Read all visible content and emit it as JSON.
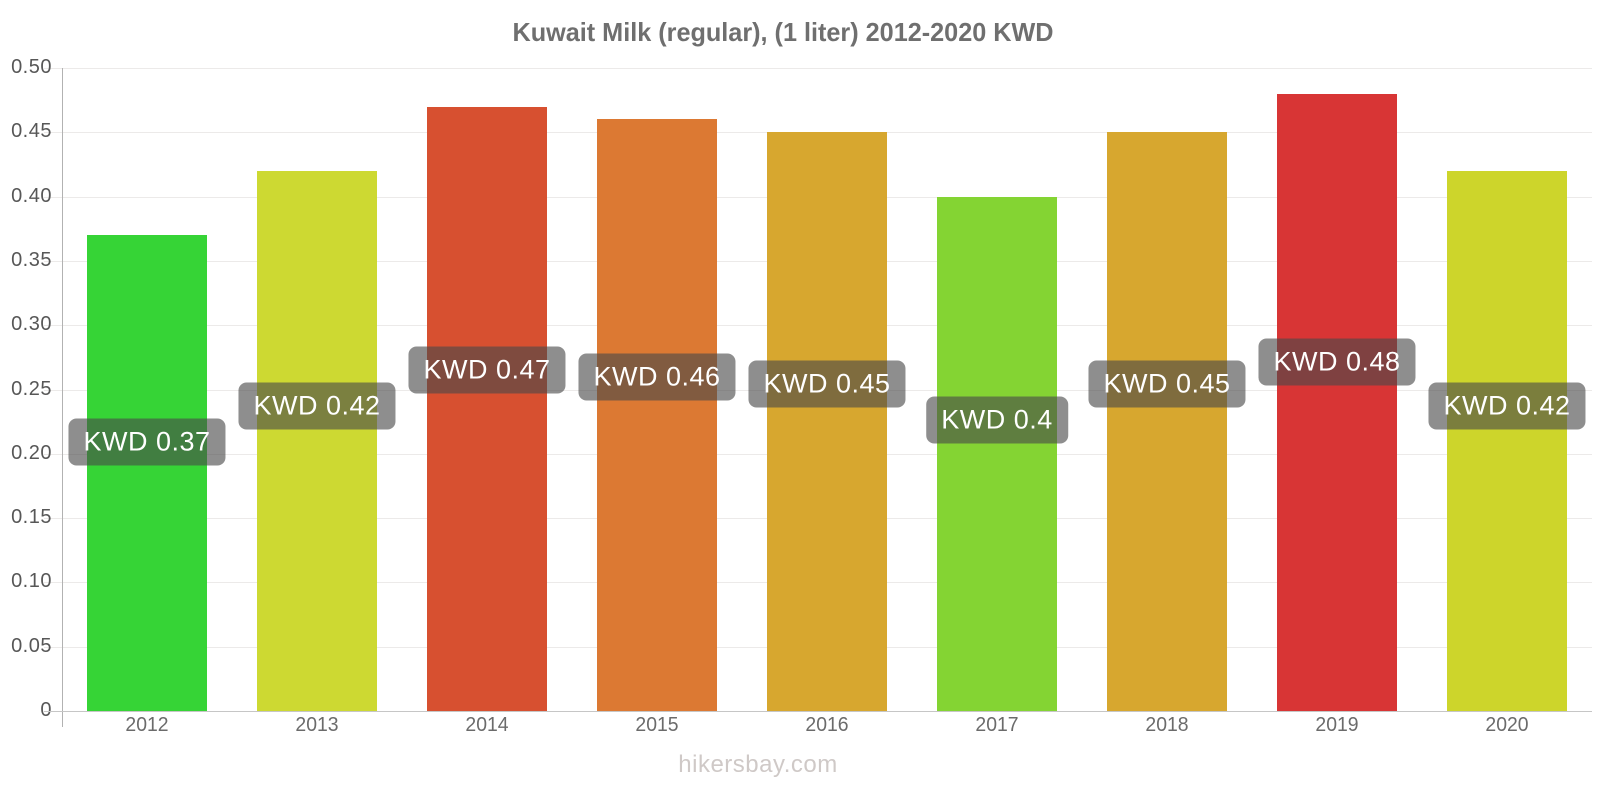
{
  "chart_data": {
    "type": "bar",
    "title": "Kuwait Milk (regular), (1 liter) 2012-2020 KWD",
    "categories": [
      "2012",
      "2013",
      "2014",
      "2015",
      "2016",
      "2017",
      "2018",
      "2019",
      "2020"
    ],
    "values": [
      0.37,
      0.42,
      0.47,
      0.46,
      0.45,
      0.4,
      0.45,
      0.48,
      0.42
    ],
    "bar_labels": [
      "KWD 0.37",
      "KWD 0.42",
      "KWD 0.47",
      "KWD 0.46",
      "KWD 0.45",
      "KWD 0.4",
      "KWD 0.45",
      "KWD 0.48",
      "KWD 0.42"
    ],
    "bar_colors": [
      "#36d436",
      "#cdd932",
      "#d75030",
      "#dc7933",
      "#d7a72f",
      "#84d433",
      "#d7a72f",
      "#d83535",
      "#cdd52b"
    ],
    "xlabel": "",
    "ylabel": "",
    "ylim": [
      0,
      0.5
    ],
    "y_ticks": [
      "0",
      "0.05",
      "0.10",
      "0.15",
      "0.20",
      "0.25",
      "0.30",
      "0.35",
      "0.40",
      "0.45",
      "0.50"
    ],
    "grid": true,
    "legend_position": "none",
    "bar_label_box_color": "rgba(72,72,72,0.62)",
    "bar_label_text_color": "#ffffff"
  },
  "footer": {
    "label": "hikersbay.com"
  }
}
